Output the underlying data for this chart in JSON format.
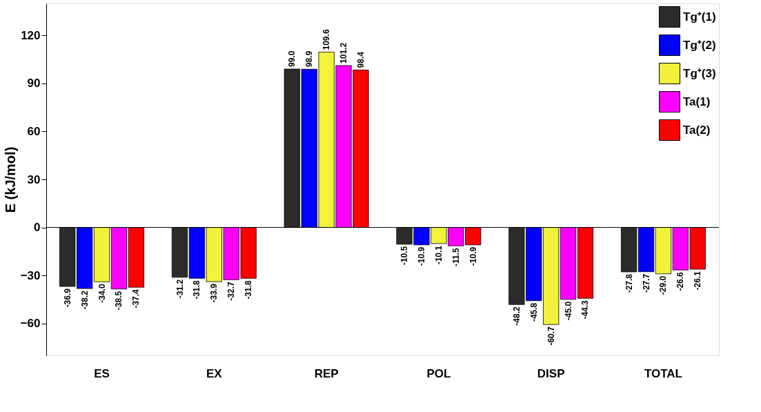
{
  "chart_data": {
    "type": "bar",
    "ylabel": "E (kJ/mol)",
    "categories": [
      "ES",
      "EX",
      "REP",
      "POL",
      "DISP",
      "TOTAL"
    ],
    "series": [
      {
        "name": "Tg⁺(1)",
        "color": "#2b2b2b",
        "values": [
          -36.9,
          -31.2,
          99.0,
          -10.5,
          -48.2,
          -27.8
        ],
        "value_labels": [
          "-36.9",
          "-31.2",
          "99.0",
          "-10.5",
          "-48.2",
          "-27.8"
        ]
      },
      {
        "name": "Tg⁺(2)",
        "color": "#0000ff",
        "values": [
          -38.2,
          -31.8,
          98.9,
          -10.9,
          -45.8,
          -27.7
        ],
        "value_labels": [
          "-38.2",
          "-31.8",
          "98.9",
          "-10.9",
          "-45.8",
          "-27.7"
        ]
      },
      {
        "name": "Tg⁺(3)",
        "color": "#f2f23a",
        "values": [
          -34.0,
          -33.9,
          109.6,
          -10.1,
          -60.7,
          -29.0
        ],
        "value_labels": [
          "-34.0",
          "-33.9",
          "109.6",
          "-10.1",
          "-60.7",
          "-29.0"
        ]
      },
      {
        "name": "Ta(1)",
        "color": "#ff00ff",
        "values": [
          -38.5,
          -32.7,
          101.2,
          -11.5,
          -45.0,
          -26.6
        ],
        "value_labels": [
          "-38.5",
          "-32.7",
          "101.2",
          "-11.5",
          "-45.0",
          "-26.6"
        ]
      },
      {
        "name": "Ta(2)",
        "color": "#ff0000",
        "values": [
          -37.4,
          -31.8,
          98.4,
          -10.9,
          -44.3,
          -26.1
        ],
        "value_labels": [
          "-37.4",
          "-31.8",
          "98.4",
          "-10.9",
          "-44.3",
          "-26.1"
        ]
      }
    ],
    "ylim": [
      -80,
      140
    ],
    "yticks": [
      -60,
      -30,
      0,
      30,
      60,
      90,
      120
    ],
    "legend": "top right"
  }
}
